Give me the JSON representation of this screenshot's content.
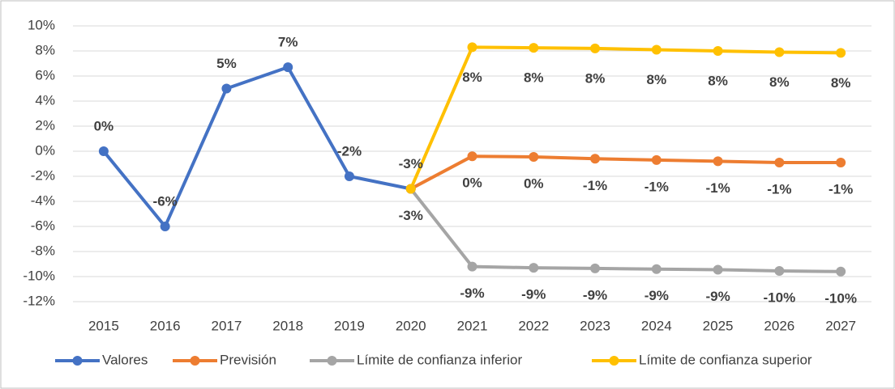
{
  "chart_data": {
    "type": "line",
    "categories": [
      "2015",
      "2016",
      "2017",
      "2018",
      "2019",
      "2020",
      "2021",
      "2022",
      "2023",
      "2024",
      "2025",
      "2026",
      "2027"
    ],
    "series": [
      {
        "name": "Valores",
        "color": "#4472c4",
        "values": [
          0,
          -6,
          5,
          6.7,
          -2,
          -3,
          null,
          null,
          null,
          null,
          null,
          null,
          null
        ],
        "value_labels": [
          "0%",
          "-6%",
          "5%",
          "7%",
          "-2%",
          "-3%",
          null,
          null,
          null,
          null,
          null,
          null,
          null
        ]
      },
      {
        "name": "Previsión",
        "color": "#ed7d31",
        "values": [
          null,
          null,
          null,
          null,
          null,
          -3,
          -0.4,
          -0.45,
          -0.6,
          -0.7,
          -0.8,
          -0.9,
          -0.9
        ],
        "value_labels": [
          null,
          null,
          null,
          null,
          null,
          null,
          "0%",
          "0%",
          "-1%",
          "-1%",
          "-1%",
          "-1%",
          "-1%"
        ]
      },
      {
        "name": "Límite de confianza inferior",
        "color": "#a5a5a5",
        "values": [
          null,
          null,
          null,
          null,
          null,
          -3,
          -9.2,
          -9.3,
          -9.35,
          -9.4,
          -9.45,
          -9.55,
          -9.6
        ],
        "value_labels": [
          null,
          null,
          null,
          null,
          null,
          "-3%",
          "-9%",
          "-9%",
          "-9%",
          "-9%",
          "-9%",
          "-10%",
          "-10%"
        ]
      },
      {
        "name": "Límite de confianza superior",
        "color": "#ffc000",
        "values": [
          null,
          null,
          null,
          null,
          null,
          -3,
          8.3,
          8.25,
          8.2,
          8.1,
          8.0,
          7.9,
          7.85
        ],
        "value_labels": [
          null,
          null,
          null,
          null,
          null,
          null,
          "8%",
          "8%",
          "8%",
          "8%",
          "8%",
          "8%",
          "8%"
        ]
      }
    ],
    "ylim": [
      -12,
      10
    ],
    "yticks": [
      {
        "value": -12,
        "label": "-12%"
      },
      {
        "value": -10,
        "label": "-10%"
      },
      {
        "value": -8,
        "label": "-8%"
      },
      {
        "value": -6,
        "label": "-6%"
      },
      {
        "value": -4,
        "label": "-4%"
      },
      {
        "value": -2,
        "label": "-2%"
      },
      {
        "value": 0,
        "label": "0%"
      },
      {
        "value": 2,
        "label": "2%"
      },
      {
        "value": 4,
        "label": "4%"
      },
      {
        "value": 6,
        "label": "6%"
      },
      {
        "value": 8,
        "label": "8%"
      },
      {
        "value": 10,
        "label": "10%"
      }
    ],
    "grid": true,
    "legend": "bottom"
  }
}
